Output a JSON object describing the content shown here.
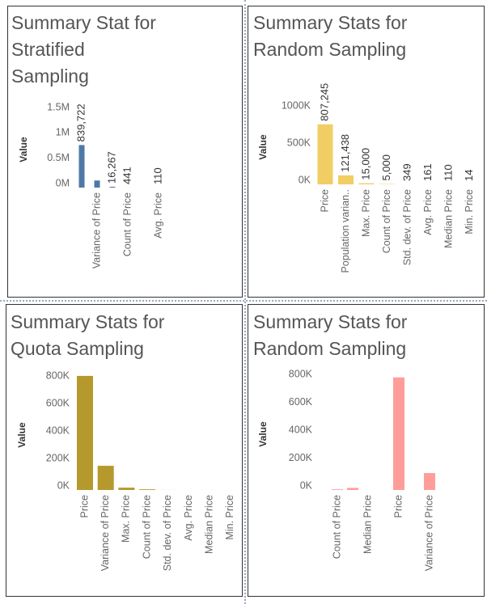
{
  "chart_data": [
    {
      "type": "bar",
      "title": "Summary Stat for Stratified Sampling",
      "y_label": "Value",
      "color": "#4e79a7",
      "categories": [
        null,
        "Variance of Price",
        null,
        "Count of Price",
        null,
        "Avg. Price"
      ],
      "values": [
        839722,
        140000,
        16267,
        441,
        200,
        110
      ],
      "value_labels": [
        "839,722",
        null,
        "16,267",
        "441",
        null,
        "110"
      ],
      "ylim": [
        0,
        1500000
      ],
      "yticks": [
        {
          "value": 0,
          "label": "0M"
        },
        {
          "value": 500000,
          "label": "0.5M"
        },
        {
          "value": 1000000,
          "label": "1M"
        },
        {
          "value": 1500000,
          "label": "1.5M"
        }
      ]
    },
    {
      "type": "bar",
      "title": "Summary Stats for Random Sampling",
      "y_label": "Value",
      "color": "#f1ce63",
      "categories": [
        "Price",
        "Population varian..",
        "Max. Price",
        "Count of Price",
        "Std. dev. of Price",
        "Avg. Price",
        "Median Price",
        "Min. Price"
      ],
      "values": [
        807245,
        121438,
        15000,
        5000,
        349,
        161,
        110,
        14
      ],
      "value_labels": [
        "807,245",
        "121,438",
        "15,000",
        "5,000",
        "349",
        "161",
        "110",
        "14"
      ],
      "ylim": [
        0,
        1000000
      ],
      "yticks": [
        {
          "value": 0,
          "label": "0K"
        },
        {
          "value": 500000,
          "label": "500K"
        },
        {
          "value": 1000000,
          "label": "1000K"
        }
      ]
    },
    {
      "type": "bar",
      "title": "Summary Stats for Quota Sampling",
      "y_label": "Value",
      "color": "#b6992d",
      "categories": [
        "Price",
        "Variance of Price",
        "Max. Price",
        "Count of Price",
        "Std. dev. of Price",
        "Avg. Price",
        "Median Price",
        "Min. Price"
      ],
      "values": [
        830000,
        176000,
        17000,
        5000,
        350,
        160,
        110,
        14
      ],
      "ylim": [
        0,
        800000
      ],
      "yticks": [
        {
          "value": 0,
          "label": "0K"
        },
        {
          "value": 200000,
          "label": "200K"
        },
        {
          "value": 400000,
          "label": "400K"
        },
        {
          "value": 600000,
          "label": "600K"
        },
        {
          "value": 800000,
          "label": "800K"
        }
      ]
    },
    {
      "type": "bar",
      "title": "Summary Stats for Random Sampling",
      "y_label": "Value",
      "color": "#ff9d9a",
      "categories": [
        "Count of Price",
        null,
        "Median Price",
        null,
        "Price",
        null,
        "Variance of Price"
      ],
      "values": [
        5000,
        15000,
        110,
        14,
        807245,
        161,
        121438
      ],
      "ylim": [
        0,
        800000
      ],
      "yticks": [
        {
          "value": 0,
          "label": "0K"
        },
        {
          "value": 200000,
          "label": "200K"
        },
        {
          "value": 400000,
          "label": "400K"
        },
        {
          "value": 600000,
          "label": "600K"
        },
        {
          "value": 800000,
          "label": "800K"
        }
      ]
    }
  ]
}
